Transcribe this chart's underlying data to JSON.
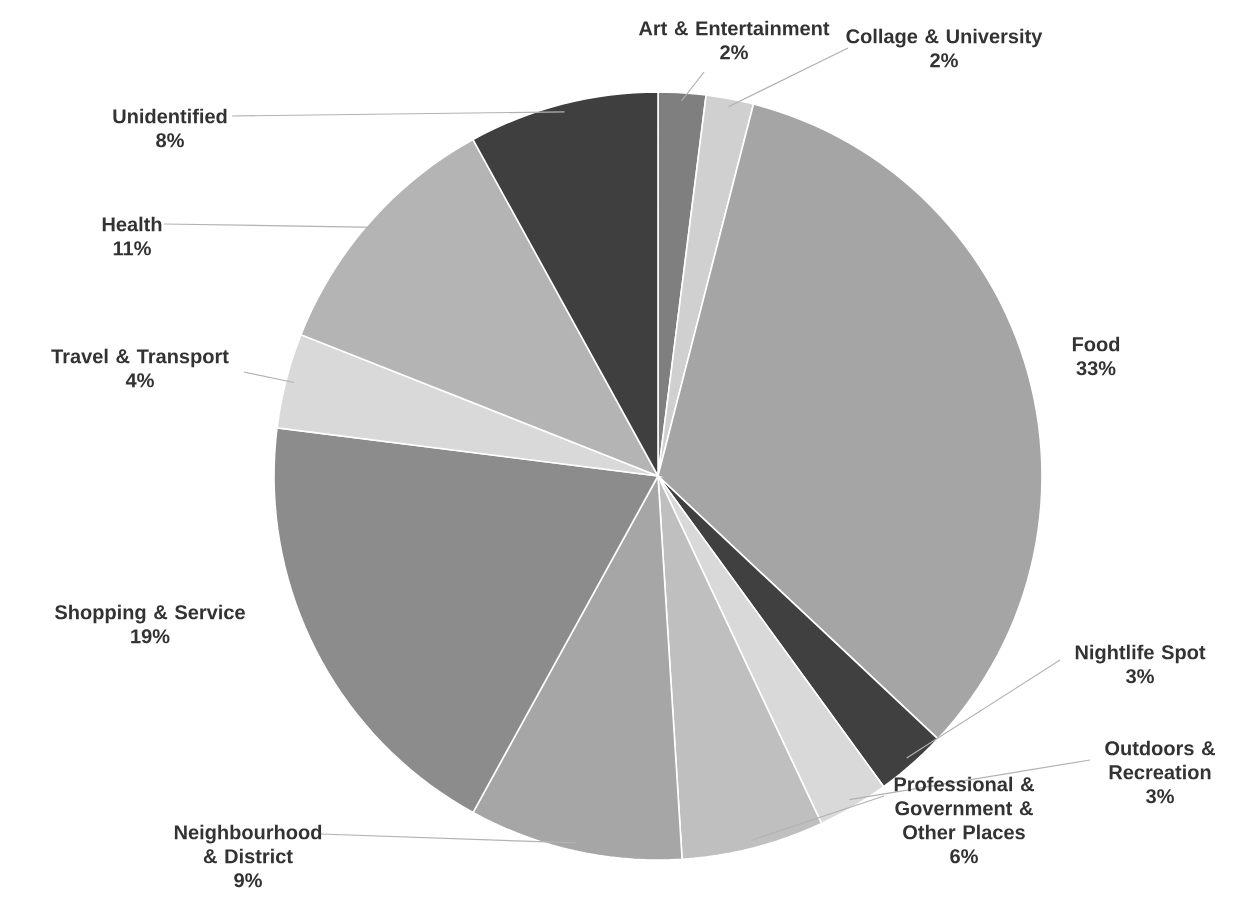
{
  "chart_data": {
    "type": "pie",
    "categories": [
      "Art & Entertainment",
      "Collage & University",
      "Food",
      "Nightlife Spot",
      "Outdoors & Recreation",
      "Professional & Government & Other Places",
      "Neighbourhood & District",
      "Shopping & Service",
      "Travel & Transport",
      "Health",
      "Unidentified"
    ],
    "values": [
      2,
      2,
      33,
      3,
      3,
      6,
      9,
      19,
      4,
      11,
      8
    ],
    "value_labels": [
      "2%",
      "2%",
      "33%",
      "3%",
      "3%",
      "6%",
      "9%",
      "19%",
      "4%",
      "11%",
      "8%"
    ],
    "colors": [
      "#7f7f7f",
      "#d0d0d0",
      "#a5a5a5",
      "#404040",
      "#d9d9d9",
      "#bfbfbf",
      "#a6a6a6",
      "#8c8c8c",
      "#d9d9d9",
      "#b4b4b4",
      "#3f3f3f"
    ]
  }
}
